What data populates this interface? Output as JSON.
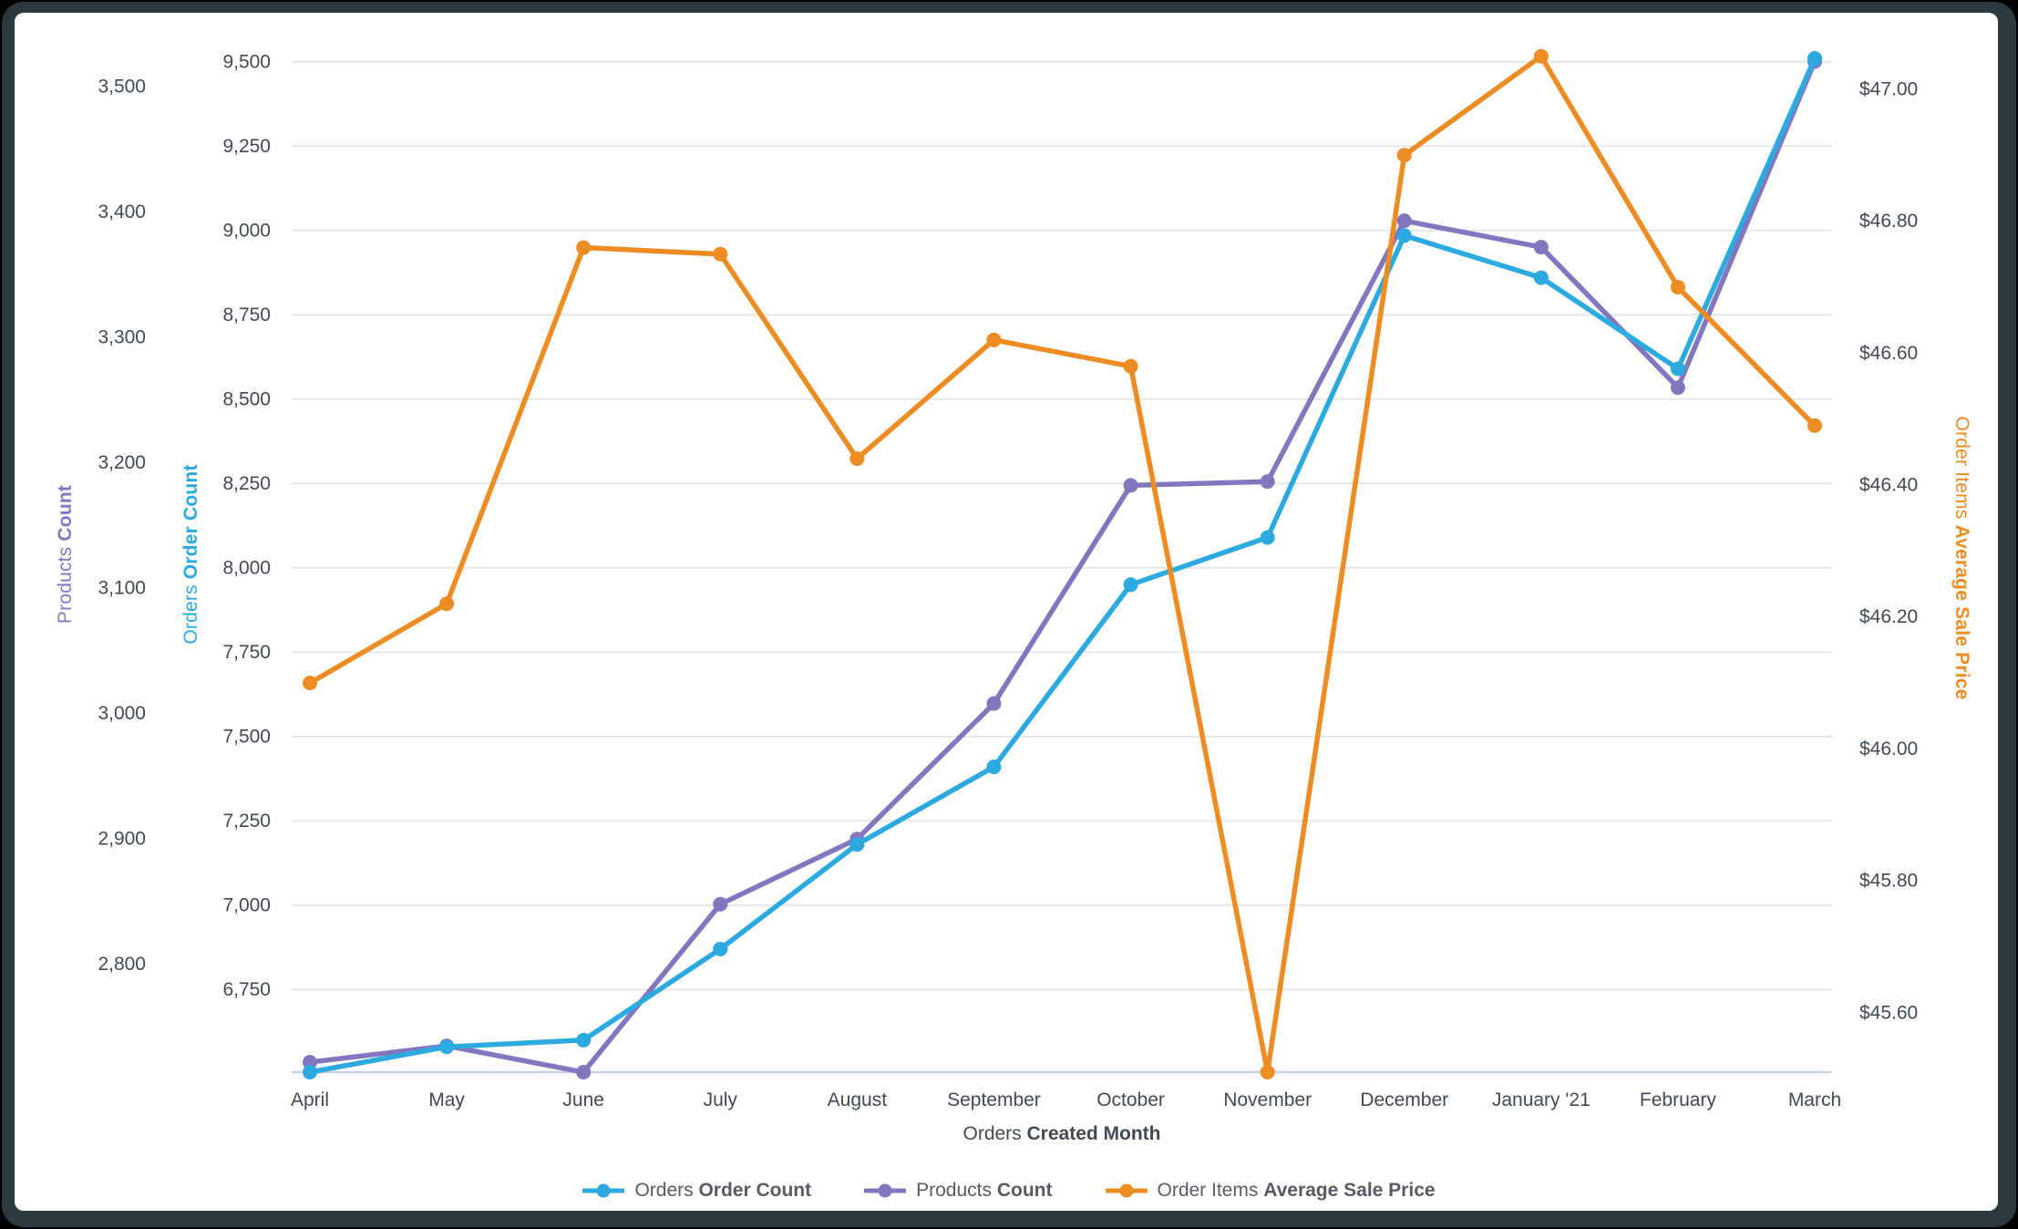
{
  "chart_data": {
    "type": "line",
    "categories": [
      "April",
      "May",
      "June",
      "July",
      "August",
      "September",
      "October",
      "November",
      "December",
      "January '21",
      "February",
      "March"
    ],
    "x_axis": {
      "label_regular": "Orders ",
      "label_bold": "Created Month"
    },
    "axes": {
      "products": {
        "title_regular": "Products ",
        "title_bold": "Count",
        "color": "#8476BE",
        "min": 2714,
        "max": 3540,
        "ticks": [
          2800,
          2900,
          3000,
          3100,
          3200,
          3300,
          3400,
          3500
        ],
        "format": "thousands",
        "side": "left-outer"
      },
      "orders": {
        "title_regular": "Orders ",
        "title_bold": "Order Count",
        "color": "#2CAADF",
        "min": 6505,
        "max": 9575,
        "ticks": [
          6750,
          7000,
          7250,
          7500,
          7750,
          8000,
          8250,
          8500,
          8750,
          9000,
          9250,
          9500
        ],
        "format": "thousands",
        "side": "left-inner"
      },
      "price": {
        "title_regular": "Order Items ",
        "title_bold": "Average Sale Price",
        "color": "#EE8C24",
        "min": 45.51,
        "max": 47.08,
        "ticks": [
          45.6,
          45.8,
          46.0,
          46.2,
          46.4,
          46.6,
          46.8,
          47.0
        ],
        "format": "currency",
        "side": "right"
      }
    },
    "series": [
      {
        "name_regular": "Orders ",
        "name_bold": "Order Count",
        "axis": "orders",
        "color": "#2CAADF",
        "values": [
          6505,
          6580,
          6600,
          6870,
          7180,
          7410,
          7950,
          8090,
          8985,
          8860,
          8590,
          9510
        ]
      },
      {
        "name_regular": "Products ",
        "name_bold": "Count",
        "axis": "products",
        "color": "#8476BE",
        "values": [
          2722,
          2735,
          2714,
          2848,
          2900,
          3008,
          3182,
          3185,
          3393,
          3372,
          3260,
          3520
        ]
      },
      {
        "name_regular": "Order Items ",
        "name_bold": "Average Sale Price",
        "axis": "price",
        "color": "#EE8C24",
        "values": [
          46.1,
          46.22,
          46.76,
          46.75,
          46.44,
          46.62,
          46.58,
          45.51,
          46.9,
          47.05,
          46.7,
          46.49
        ]
      }
    ],
    "grid": true,
    "gridline_axis": "orders",
    "legend_position": "bottom",
    "title": ""
  },
  "colors": {
    "background_outer": "#000000",
    "frame": "#2C393F",
    "card": "#FFFFFF",
    "gridline": "#E7E7E7",
    "baseline": "#C8D1E0",
    "tick_text": "#404A53",
    "legend_text": "#565C61"
  }
}
